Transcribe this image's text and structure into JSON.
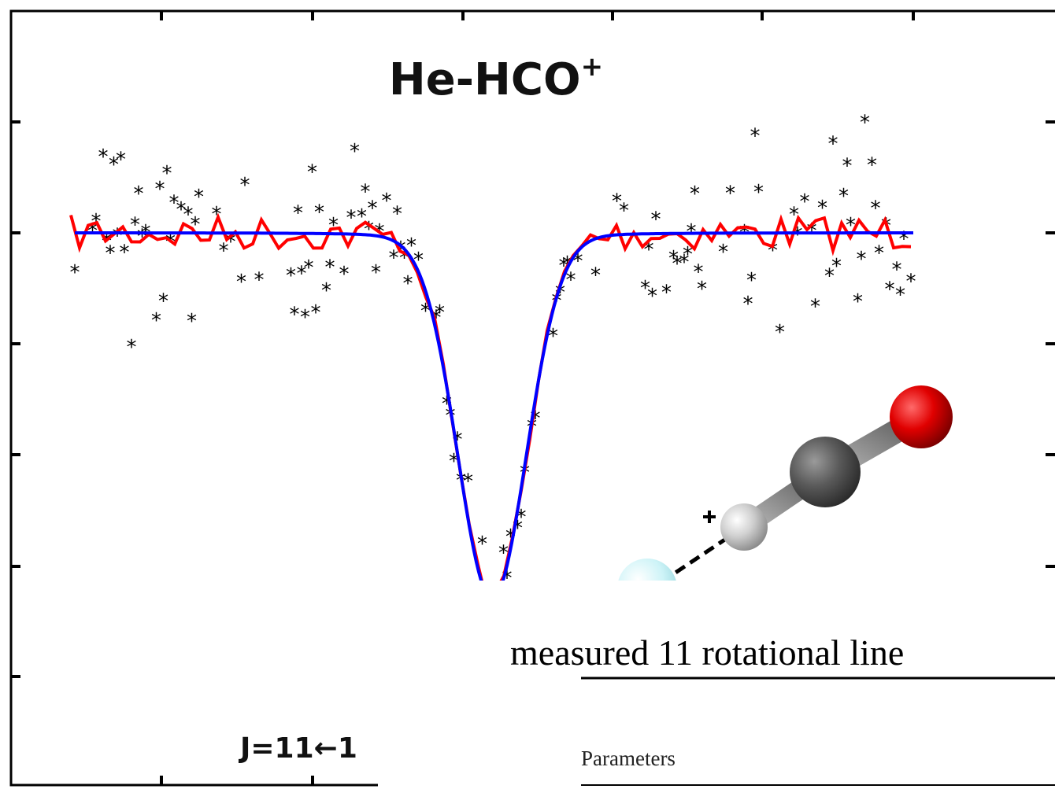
{
  "title": {
    "text": "He-HCO",
    "superscript": "+"
  },
  "transition_label": "J=11←1",
  "caption": "measured 11 rotational line",
  "table": {
    "header": "Parameters"
  }
}
